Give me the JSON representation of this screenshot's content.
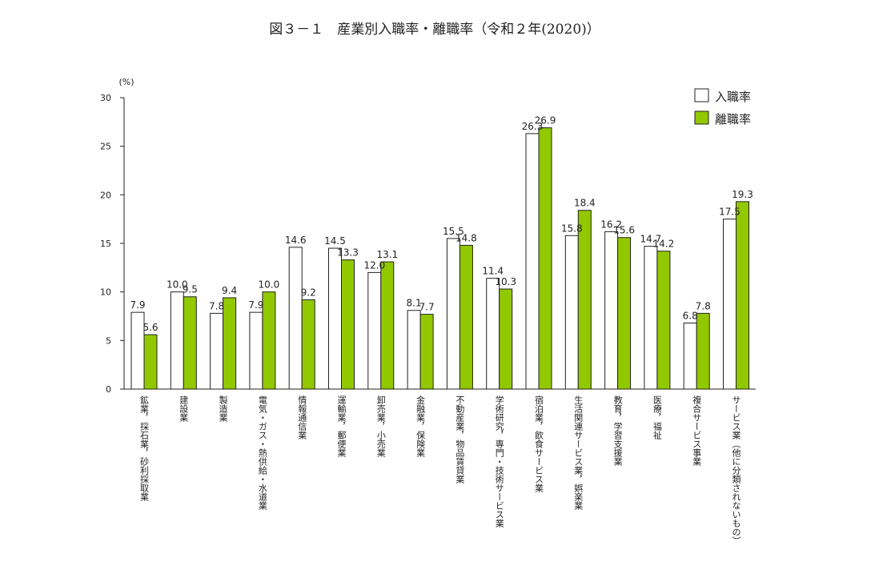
{
  "title": "図３－１　産業別入職率・離職率（令和２年(2020)）",
  "chart_data": {
    "type": "bar",
    "title": "図３－１　産業別入職率・離職率（令和２年(2020)）",
    "unit": "(%)",
    "ylim": [
      0,
      30
    ],
    "yticks": [
      "0",
      "5",
      "10",
      "15",
      "20",
      "25",
      "30"
    ],
    "grid": false,
    "legend_position": "top-right",
    "categories": [
      "鉱業，採石業，砂利採取業",
      "建設業",
      "製造業",
      "電気・ガス・熱供給・水道業",
      "情報通信業",
      "運輸業，郵便業",
      "卸売業，小売業",
      "金融業，保険業",
      "不動産業，物品賃貸業",
      "学術研究，専門・技術サービス業",
      "宿泊業，飲食サービス業",
      "生活関連サービス業，娯楽業",
      "教育，学習支援業",
      "医療，福祉",
      "複合サービス事業",
      "サービス業（他に分類されないもの）"
    ],
    "series": [
      {
        "name": "入職率",
        "color": "#ffffff",
        "values": [
          7.9,
          10.0,
          7.8,
          7.9,
          14.6,
          14.5,
          12.0,
          8.1,
          15.5,
          11.4,
          26.3,
          15.8,
          16.2,
          14.7,
          6.8,
          17.5
        ],
        "labels": [
          "7.9",
          "10.0",
          "7.8",
          "7.9",
          "14.6",
          "14.5",
          "12.0",
          "8.1",
          "15.5",
          "11.4",
          "26.3",
          "15.8",
          "16.2",
          "14.7",
          "6.8",
          "17.5"
        ]
      },
      {
        "name": "離職率",
        "color": "#92c800",
        "values": [
          5.6,
          9.5,
          9.4,
          10.0,
          9.2,
          13.3,
          13.1,
          7.7,
          14.8,
          10.3,
          26.9,
          18.4,
          15.6,
          14.2,
          7.8,
          19.3
        ],
        "labels": [
          "5.6",
          "9.5",
          "9.4",
          "10.0",
          "9.2",
          "13.3",
          "13.1",
          "7.7",
          "14.8",
          "10.3",
          "26.9",
          "18.4",
          "15.6",
          "14.2",
          "7.8",
          "19.3"
        ]
      }
    ]
  }
}
